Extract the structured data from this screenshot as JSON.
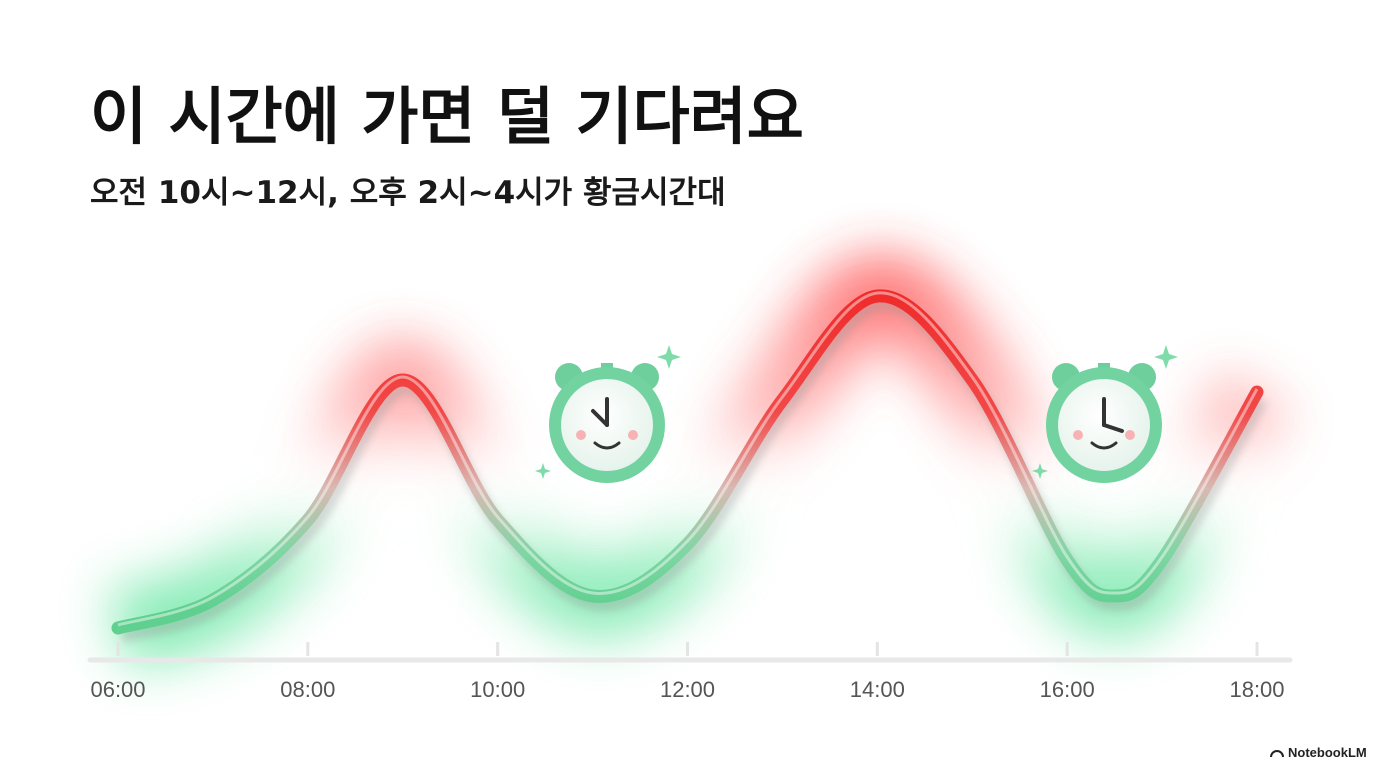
{
  "chart_data": {
    "type": "line",
    "title": "이 시간에 가면 덜 기다려요",
    "subtitle": "오전 10시~12시, 오후 2시~4시가 황금시간대",
    "x": [
      6,
      7,
      8,
      9,
      10,
      11,
      12,
      13,
      14,
      15,
      16,
      16.5,
      17,
      18
    ],
    "series": [
      {
        "values": [
          8,
          15,
          35,
          70,
          35,
          16,
          29,
          65,
          91,
          70,
          25,
          16,
          25,
          67
        ]
      }
    ],
    "xlim": [
      6,
      18
    ],
    "xticks": [
      {
        "value": 6,
        "label": "06:00"
      },
      {
        "value": 8,
        "label": "08:00"
      },
      {
        "value": 10,
        "label": "10:00"
      },
      {
        "value": 12,
        "label": "12:00"
      },
      {
        "value": 14,
        "label": "14:00"
      },
      {
        "value": 16,
        "label": "16:00"
      },
      {
        "value": 18,
        "label": "18:00"
      }
    ],
    "ylim": [
      0,
      100
    ]
  },
  "watermark": "NotebookLM"
}
